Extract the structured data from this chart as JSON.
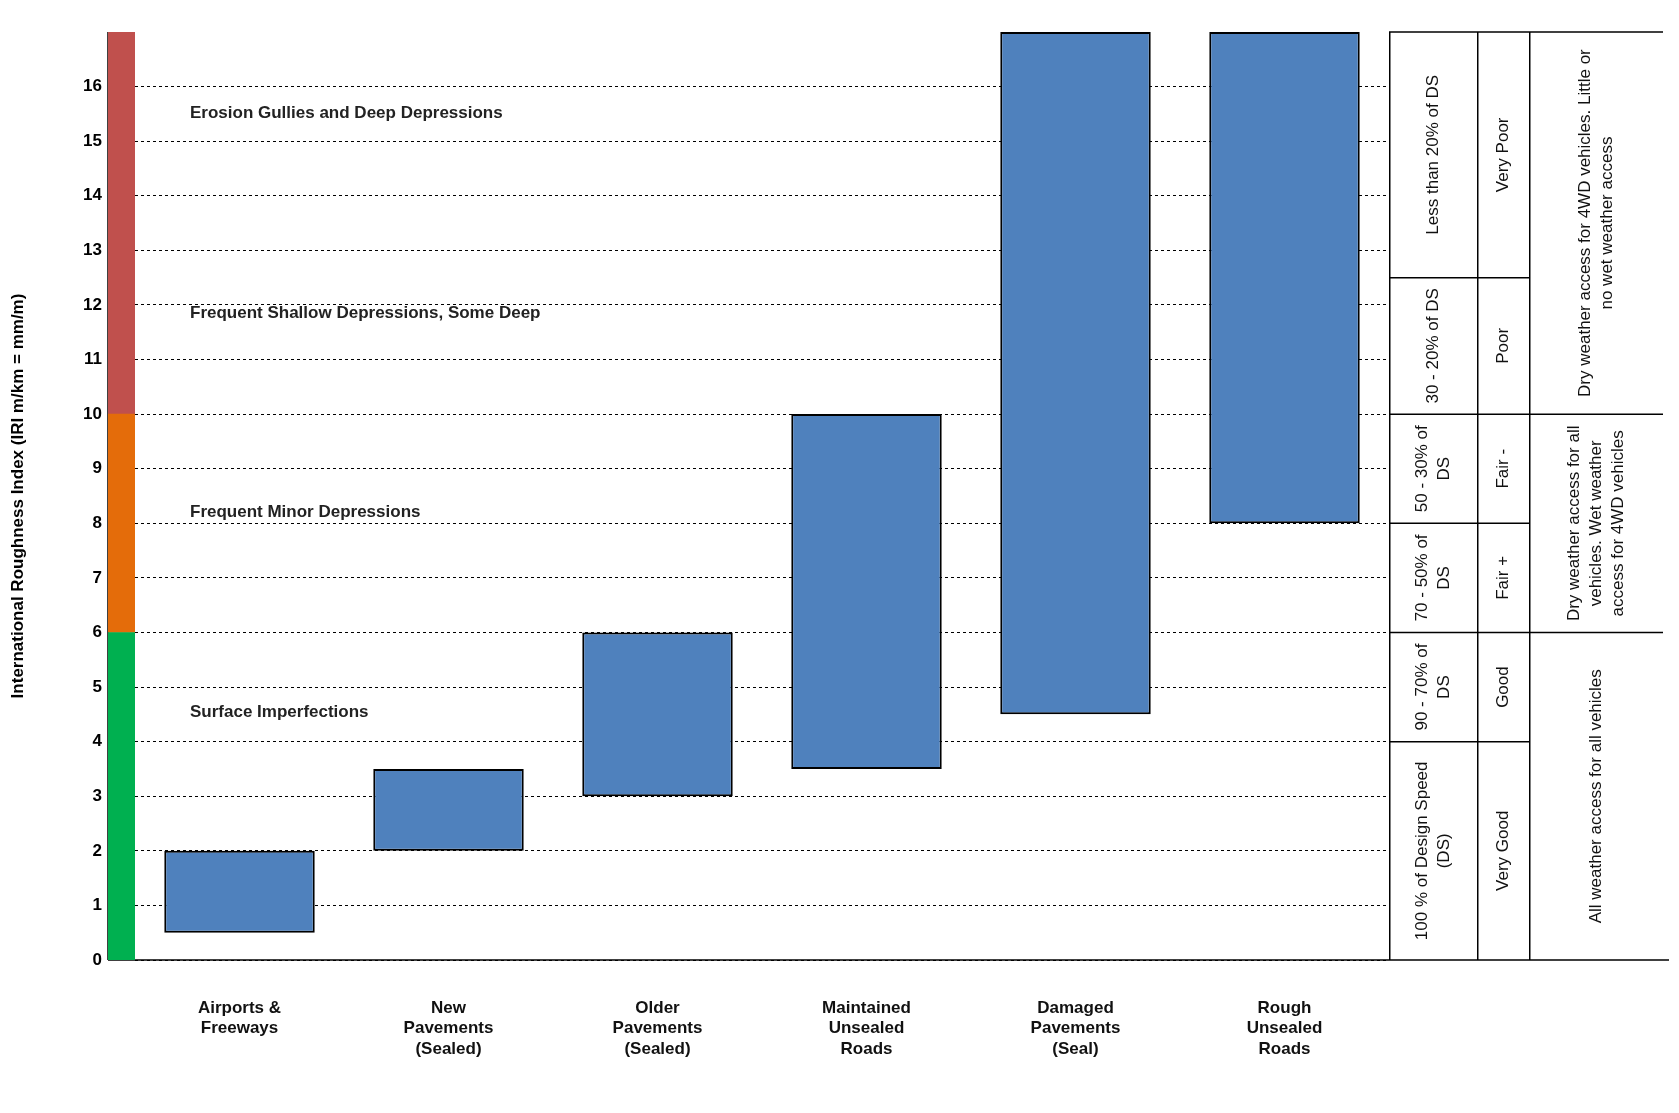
{
  "chart_data": [
    {
      "type": "bar",
      "stacked": true,
      "ylabel": "International Roughness Index (IRI m/km = mm/m)",
      "categories": [
        null
      ],
      "series": [
        {
          "color": "#00b050",
          "values": [
            6
          ]
        },
        {
          "color": "#e46c0a",
          "values": [
            4
          ]
        },
        {
          "color": "#c0504d",
          "values": [
            7
          ]
        }
      ],
      "ylim": [
        0,
        17
      ],
      "yticks": [
        0,
        1,
        2,
        3,
        4,
        5,
        6,
        7,
        8,
        9,
        10,
        11,
        12,
        13,
        14,
        15,
        16
      ],
      "tick_labels": "y"
    },
    {
      "type": "bar",
      "categories": [
        "Airports & Freeways",
        "New Pavements (Sealed)",
        "Older Pavements (Sealed)",
        "Maintained Unsealed Roads",
        "Damaged Pavements (Seal)",
        "Rough Unsealed Roads"
      ],
      "base": [
        0.5,
        2,
        3,
        3.5,
        4.5,
        8
      ],
      "values": [
        1.5,
        1.5,
        3,
        6.5,
        12.5,
        9
      ],
      "color": "#4f81bd",
      "ylim": [
        0,
        17
      ],
      "yticks": [
        0,
        1,
        2,
        3,
        4,
        5,
        6,
        7,
        8,
        9,
        10,
        11,
        12,
        13,
        14,
        15,
        16
      ],
      "tick_labels": "x",
      "grid": "y",
      "annotations": [
        "Erosion Gullies and Deep Depressions",
        "Frequent Shallow Depressions, Some Deep",
        "Frequent Minor Depressions",
        "Surface Imperfections"
      ]
    },
    {
      "type": "other",
      "annotations": [
        "Less than 20% of DS",
        "30 - 20% of DS",
        "50 - 30% of DS",
        "70 - 50% of DS",
        "90 - 70% of DS",
        "100 % of Design Speed (DS)",
        "Very Poor",
        "Poor",
        "Fair -",
        "Fair +",
        "Good",
        "Very Good",
        "Dry weather access for 4WD vehicles. Little or no wet weather access",
        "Dry weather access for all vehicles. Wet weather access for 4WD vehicles",
        "All weather access for all vehicles"
      ]
    }
  ]
}
